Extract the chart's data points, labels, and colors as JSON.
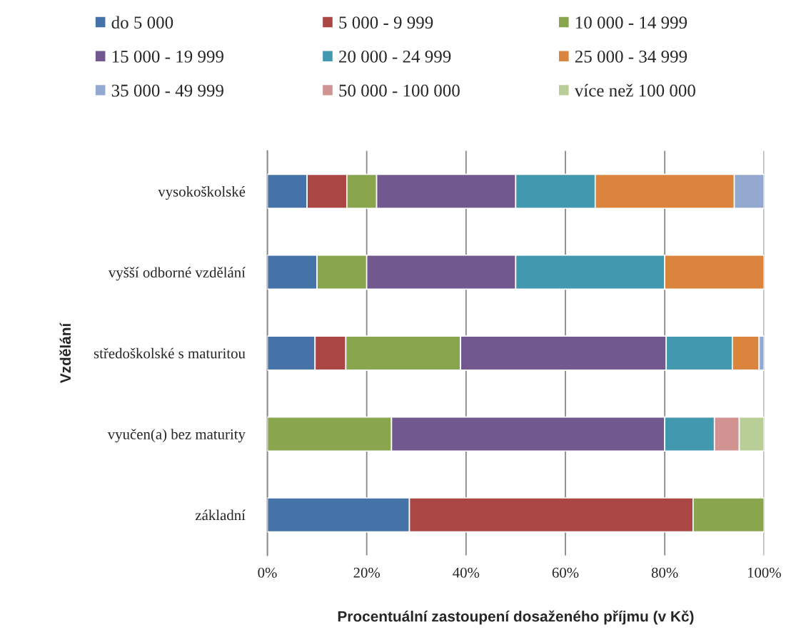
{
  "chart_data": {
    "type": "bar",
    "orientation": "horizontal",
    "stacked": true,
    "xlabel": "Procentuální zastoupení dosaženého příjmu (v Kč)",
    "ylabel": "Vzdělání",
    "categories": [
      "vysokoškolské",
      "vyšší odborné vzdělání",
      "středoškolské s maturitou",
      "vyučen(a) bez maturity",
      "základní"
    ],
    "series": [
      {
        "name": "do 5 000",
        "color": "#4572a7",
        "values": [
          8,
          10,
          9.6,
          null,
          28.6
        ]
      },
      {
        "name": "5 000 - 9 999",
        "color": "#aa4643",
        "values": [
          8,
          null,
          6.2,
          null,
          57.1
        ]
      },
      {
        "name": "10 000 - 14 999",
        "color": "#89a54e",
        "values": [
          6,
          10,
          23.1,
          25,
          14.3
        ]
      },
      {
        "name": "15 000 - 19 999",
        "color": "#71588f",
        "values": [
          28,
          30,
          41.4,
          55,
          null
        ]
      },
      {
        "name": "20 000 - 24 999",
        "color": "#4198af",
        "values": [
          16,
          30,
          13.3,
          10,
          null
        ]
      },
      {
        "name": "25 000 - 34 999",
        "color": "#db843d",
        "values": [
          28,
          20,
          5.4,
          null,
          null
        ]
      },
      {
        "name": "35 000 - 49 999",
        "color": "#93a9cf",
        "values": [
          6,
          null,
          1.0,
          null,
          null
        ]
      },
      {
        "name": "50 000 - 100 000",
        "color": "#d19392",
        "values": [
          null,
          null,
          null,
          5,
          null
        ]
      },
      {
        "name": "více než 100 000",
        "color": "#b9cd96",
        "values": [
          null,
          null,
          null,
          5,
          null
        ]
      }
    ],
    "xlim": [
      0,
      100
    ],
    "xticks": [
      {
        "value": 0,
        "label": "0%"
      },
      {
        "value": 20,
        "label": "20%"
      },
      {
        "value": 40,
        "label": "40%"
      },
      {
        "value": 60,
        "label": "60%"
      },
      {
        "value": 80,
        "label": "80%"
      },
      {
        "value": 100,
        "label": "100%"
      }
    ],
    "grid": "x",
    "legend": "top"
  }
}
